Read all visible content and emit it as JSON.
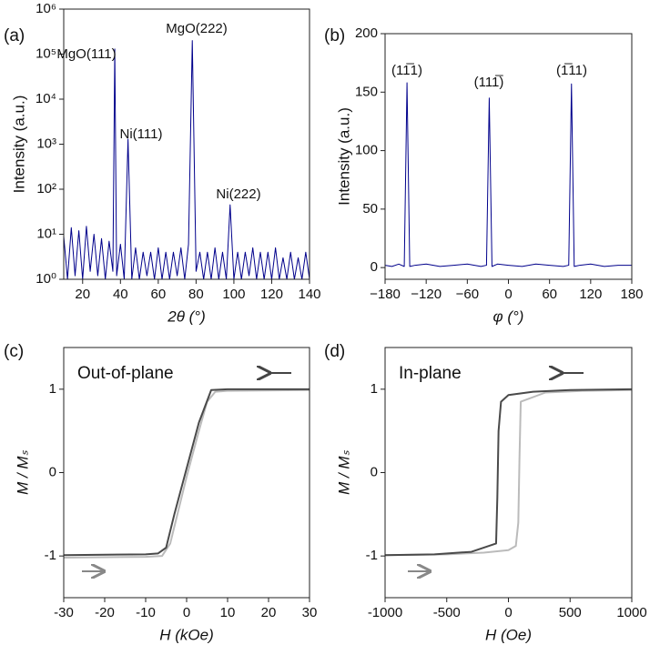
{
  "chart_data": [
    {
      "type": "line",
      "panel": "(a)",
      "xlabel": "2θ (°)",
      "ylabel": "Intensity (a.u.)",
      "log_y": true,
      "xlim": [
        10,
        140
      ],
      "xticks": [
        20,
        40,
        60,
        80,
        100,
        120,
        140
      ],
      "ylim": [
        1,
        1000000
      ],
      "yticks": [
        {
          "value": 1,
          "label": "10⁰"
        },
        {
          "value": 10,
          "label": "10¹"
        },
        {
          "value": 100,
          "label": "10²"
        },
        {
          "value": 1000,
          "label": "10³"
        },
        {
          "value": 10000,
          "label": "10⁴"
        },
        {
          "value": 100000,
          "label": "10⁵"
        },
        {
          "value": 1000000,
          "label": "10⁶"
        }
      ],
      "annotations": [
        "MgO(111)",
        "Ni(111)",
        "MgO(222)",
        "Ni(222)"
      ],
      "series": [
        {
          "color": "#00008b",
          "x": [
            10,
            12,
            14,
            16,
            18,
            20,
            22,
            24,
            26,
            28,
            30,
            32,
            34,
            36,
            37,
            38,
            40,
            42,
            44,
            46,
            48,
            50,
            52,
            54,
            56,
            58,
            60,
            62,
            64,
            66,
            68,
            70,
            72,
            74,
            76,
            78,
            80,
            82,
            84,
            86,
            88,
            90,
            92,
            94,
            96,
            98,
            100,
            102,
            104,
            106,
            108,
            110,
            112,
            114,
            116,
            118,
            120,
            122,
            124,
            126,
            128,
            130,
            132,
            134,
            136,
            138,
            140
          ],
          "values": [
            9,
            1,
            14,
            1.2,
            12,
            1,
            15,
            1.5,
            10,
            1.2,
            8,
            1,
            7,
            1.5,
            130000,
            1.2,
            6,
            1,
            1300,
            1,
            5,
            1,
            4,
            1.2,
            4,
            1,
            5,
            1,
            4,
            1,
            4,
            1.2,
            5,
            1,
            6,
            200000,
            1.5,
            4,
            1,
            4,
            1,
            5,
            1,
            4,
            1,
            45,
            1,
            4,
            1,
            4,
            1.2,
            5,
            1,
            4,
            1,
            4,
            1,
            5,
            1,
            3,
            1,
            4,
            1,
            3,
            1,
            4,
            1
          ]
        }
      ]
    },
    {
      "type": "line",
      "panel": "(b)",
      "xlabel": "φ (°)",
      "ylabel": "Intensity (a.u.)",
      "xlim": [
        -180,
        180
      ],
      "xticks": [
        {
          "value": -180,
          "label": "−180"
        },
        {
          "value": -120,
          "label": "−120"
        },
        {
          "value": -60,
          "label": "−60"
        },
        0,
        60,
        120,
        180
      ],
      "ylim": [
        -10,
        200
      ],
      "yticks": [
        0,
        50,
        100,
        150,
        200
      ],
      "annotations": [
        "(11̅1)",
        "(111̅)",
        "(1̅11)"
      ],
      "series": [
        {
          "color": "#00008b",
          "x": [
            -180,
            -170,
            -160,
            -152,
            -148,
            -144,
            -136,
            -120,
            -100,
            -80,
            -60,
            -40,
            -32,
            -28,
            -24,
            -16,
            0,
            20,
            40,
            60,
            80,
            88,
            92,
            96,
            104,
            120,
            140,
            160,
            180
          ],
          "values": [
            2,
            1,
            3,
            1,
            158,
            1,
            2,
            3,
            1,
            2,
            3,
            1,
            2,
            145,
            1,
            3,
            2,
            1,
            3,
            2,
            1,
            2,
            157,
            1,
            2,
            3,
            1,
            2,
            2
          ]
        }
      ]
    },
    {
      "type": "line",
      "panel": "(c)",
      "xlabel": "H (kOe)",
      "ylabel": "M / Mₛ",
      "xlim": [
        -30,
        30
      ],
      "xticks": [
        -30,
        -20,
        -10,
        0,
        10,
        20,
        30
      ],
      "ylim": [
        -1.5,
        1.5
      ],
      "yticks": [
        -1,
        0,
        1
      ],
      "annotations": [
        "Out-of-plane"
      ],
      "series": [
        {
          "color": "#bbbbbb",
          "x": [
            -30,
            -10,
            -6,
            -4,
            0,
            3,
            5,
            7,
            10,
            30
          ],
          "values": [
            -1.02,
            -1.01,
            -1,
            -0.85,
            -0.05,
            0.5,
            0.85,
            0.97,
            0.98,
            0.99
          ]
        },
        {
          "color": "#4a4a4a",
          "x": [
            30,
            10,
            6,
            3,
            0,
            -3,
            -5,
            -7,
            -10,
            -30
          ],
          "values": [
            1,
            1,
            0.99,
            0.6,
            0.05,
            -0.5,
            -0.9,
            -0.97,
            -0.98,
            -0.99
          ]
        }
      ]
    },
    {
      "type": "line",
      "panel": "(d)",
      "xlabel": "H (Oe)",
      "ylabel": "M / Mₛ",
      "xlim": [
        -1000,
        1000
      ],
      "xticks": [
        -1000,
        -500,
        0,
        500,
        1000
      ],
      "ylim": [
        -1.5,
        1.5
      ],
      "yticks": [
        -1,
        0,
        1
      ],
      "annotations": [
        "In-plane"
      ],
      "series": [
        {
          "color": "#bbbbbb",
          "x": [
            -1000,
            -500,
            -200,
            0,
            60,
            80,
            90,
            100,
            300,
            600,
            1000
          ],
          "values": [
            -0.99,
            -0.98,
            -0.96,
            -0.93,
            -0.88,
            -0.6,
            0.2,
            0.85,
            0.96,
            0.98,
            0.99
          ]
        },
        {
          "color": "#4a4a4a",
          "x": [
            1000,
            500,
            200,
            0,
            -60,
            -80,
            -90,
            -100,
            -300,
            -600,
            -1000
          ],
          "values": [
            1,
            0.99,
            0.97,
            0.93,
            0.85,
            0.5,
            -0.3,
            -0.85,
            -0.95,
            -0.98,
            -0.99
          ]
        }
      ]
    }
  ]
}
